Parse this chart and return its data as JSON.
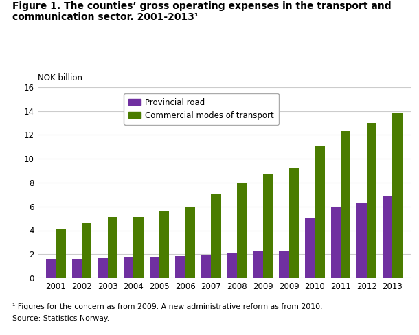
{
  "title_line1": "Figure 1. The counties’ gross operating expenses in the transport and",
  "title_line2": "communication sector. 2001-2013¹",
  "ylabel_text": "NOK billion",
  "footnote1": "¹ Figures for the concern as from 2009. A new administrative reform as from 2010.",
  "footnote2": "Source: Statistics Norway.",
  "xlabels": [
    "2001",
    "2002",
    "2003",
    "2004",
    "2005",
    "2006",
    "2007",
    "2008",
    "2009",
    "2009",
    "2010",
    "2011",
    "2012",
    "2013"
  ],
  "provincial_road": [
    1.6,
    1.6,
    1.65,
    1.7,
    1.7,
    1.85,
    1.95,
    2.1,
    2.3,
    2.3,
    5.0,
    6.0,
    6.35,
    6.85
  ],
  "commercial_transport": [
    4.1,
    4.6,
    5.1,
    5.1,
    5.6,
    6.0,
    7.0,
    7.95,
    8.75,
    9.2,
    11.1,
    12.3,
    13.0,
    13.85
  ],
  "color_provincial": "#7030a0",
  "color_commercial": "#4a7c00",
  "ylim": [
    0,
    16
  ],
  "yticks": [
    0,
    2,
    4,
    6,
    8,
    10,
    12,
    14,
    16
  ],
  "bar_width": 0.38,
  "background_color": "#ffffff",
  "grid_color": "#cccccc"
}
